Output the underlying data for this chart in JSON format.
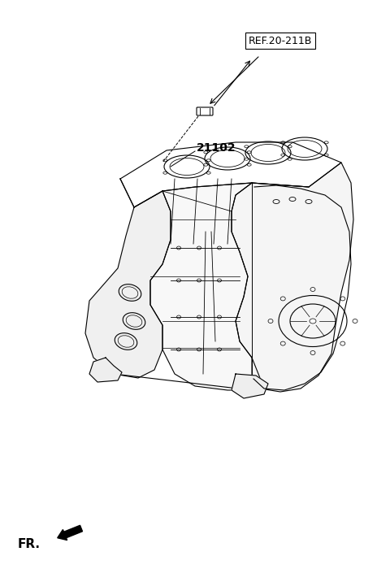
{
  "title": "",
  "background_color": "#ffffff",
  "line_color": "#000000",
  "ref_label": "REF.20-211B",
  "part_label": "21102",
  "fr_label": "FR.",
  "fig_width": 4.8,
  "fig_height": 7.16,
  "dpi": 100
}
